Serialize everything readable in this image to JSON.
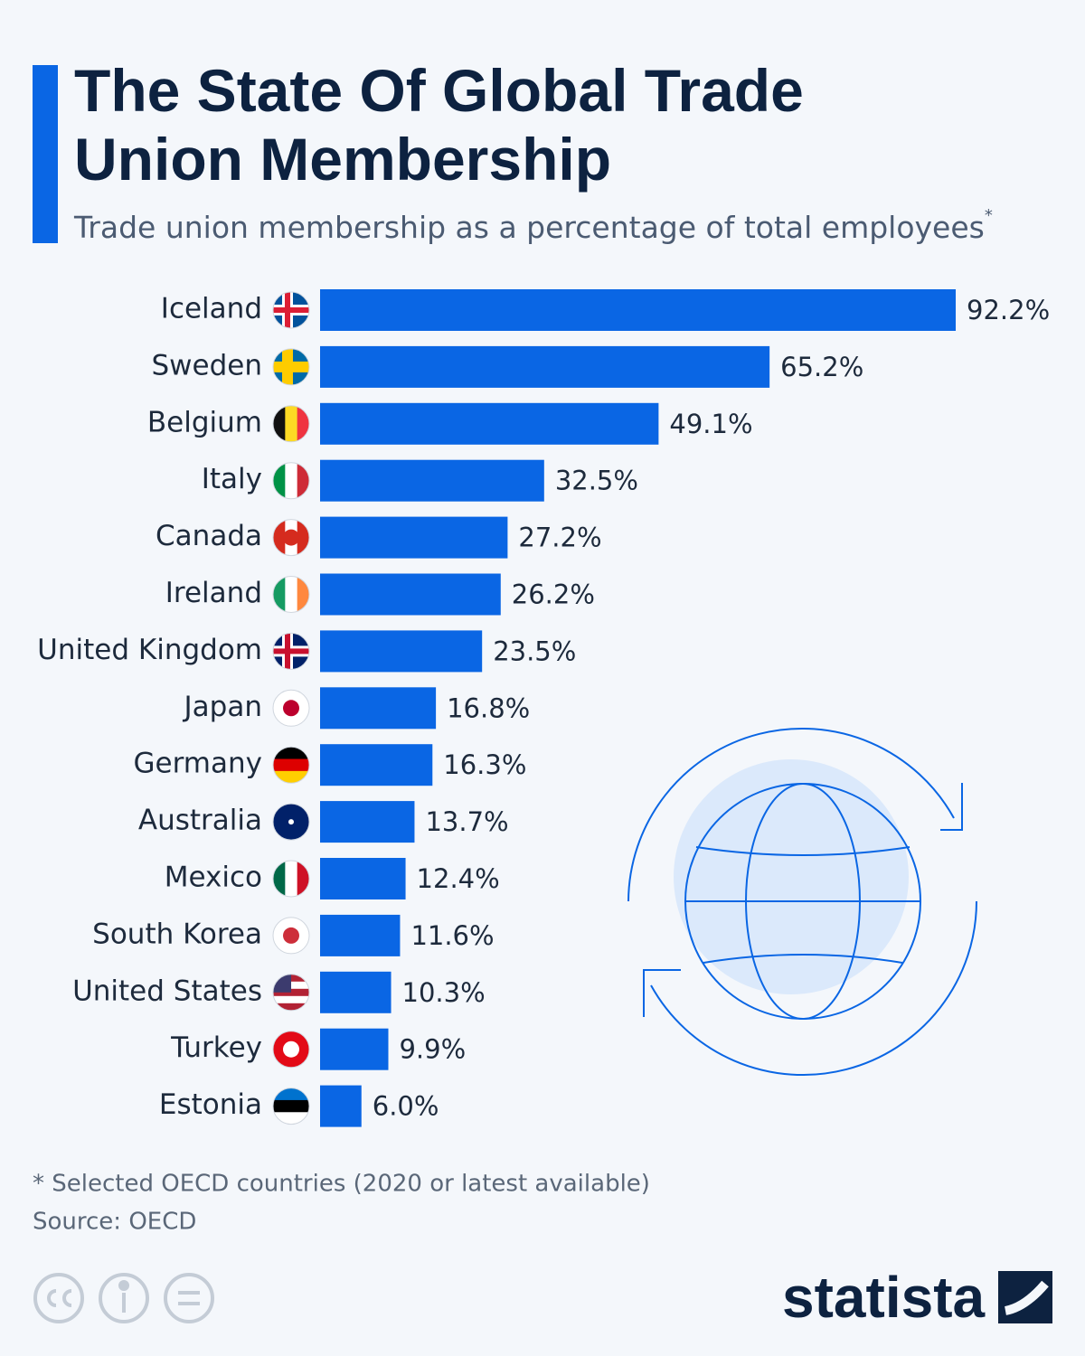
{
  "title": "The State Of Global Trade Union Membership",
  "subtitle": "Trade union membership as a percentage of total employees",
  "subtitle_marker": "*",
  "footnote": "* Selected OECD countries (2020 or latest available)",
  "source": "Source: OECD",
  "brand": "statista",
  "chart_data": {
    "type": "bar",
    "orientation": "horizontal",
    "color": "#0a66e4",
    "categories": [
      "Iceland",
      "Sweden",
      "Belgium",
      "Italy",
      "Canada",
      "Ireland",
      "United Kingdom",
      "Japan",
      "Germany",
      "Australia",
      "Mexico",
      "South Korea",
      "United States",
      "Turkey",
      "Estonia"
    ],
    "values": [
      92.2,
      65.2,
      49.1,
      32.5,
      27.2,
      26.2,
      23.5,
      16.8,
      16.3,
      13.7,
      12.4,
      11.6,
      10.3,
      9.9,
      6.0
    ],
    "value_labels": [
      "92.2%",
      "65.2%",
      "49.1%",
      "32.5%",
      "27.2%",
      "26.2%",
      "23.5%",
      "16.8%",
      "16.3%",
      "13.7%",
      "12.4%",
      "11.6%",
      "10.3%",
      "9.9%",
      "6.0%"
    ]
  }
}
